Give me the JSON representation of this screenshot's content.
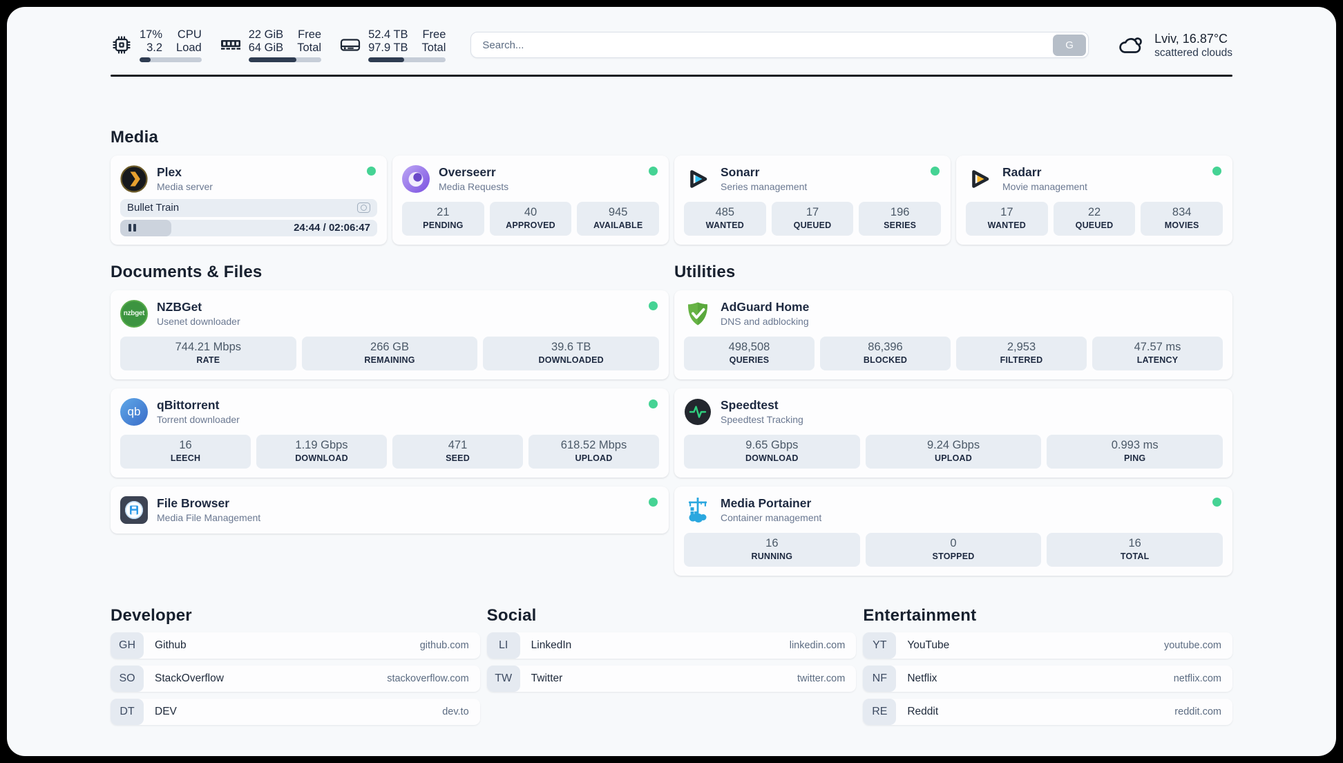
{
  "header": {
    "system": {
      "cpu": {
        "icon": "cpu-icon",
        "values": [
          "17%",
          "3.2"
        ],
        "labels": [
          "CPU",
          "Load"
        ],
        "progress_pct": 18
      },
      "memory": {
        "icon": "memory-icon",
        "values": [
          "22 GiB",
          "64 GiB"
        ],
        "labels": [
          "Free",
          "Total"
        ],
        "progress_pct": 66
      },
      "disk": {
        "icon": "disk-icon",
        "values": [
          "52.4 TB",
          "97.9 TB"
        ],
        "labels": [
          "Free",
          "Total"
        ],
        "progress_pct": 46
      }
    },
    "search": {
      "placeholder": "Search...",
      "engine_button": "G"
    },
    "weather": {
      "icon": "scattered-clouds-icon",
      "summary": "Lviv, 16.87°C",
      "condition": "scattered clouds"
    }
  },
  "sections": {
    "media": "Media",
    "documents": "Documents & Files",
    "utilities": "Utilities",
    "developer": "Developer",
    "social": "Social",
    "entertainment": "Entertainment"
  },
  "services": {
    "plex": {
      "icon": "plex-icon",
      "name": "Plex",
      "desc": "Media server",
      "status": "online",
      "session": {
        "title": "Bullet Train",
        "time": "24:44 / 02:06:47",
        "elapsed_pct": 20,
        "state": "paused"
      }
    },
    "overseerr": {
      "icon": "overseerr-icon",
      "name": "Overseerr",
      "desc": "Media Requests",
      "status": "online",
      "stats": [
        {
          "value": "21",
          "label": "PENDING"
        },
        {
          "value": "40",
          "label": "APPROVED"
        },
        {
          "value": "945",
          "label": "AVAILABLE"
        }
      ]
    },
    "sonarr": {
      "icon": "sonarr-icon",
      "name": "Sonarr",
      "desc": "Series management",
      "status": "online",
      "stats": [
        {
          "value": "485",
          "label": "WANTED"
        },
        {
          "value": "17",
          "label": "QUEUED"
        },
        {
          "value": "196",
          "label": "SERIES"
        }
      ]
    },
    "radarr": {
      "icon": "radarr-icon",
      "name": "Radarr",
      "desc": "Movie management",
      "status": "online",
      "stats": [
        {
          "value": "17",
          "label": "WANTED"
        },
        {
          "value": "22",
          "label": "QUEUED"
        },
        {
          "value": "834",
          "label": "MOVIES"
        }
      ]
    },
    "nzbget": {
      "icon": "nzbget-icon",
      "icon_text": "nzbget",
      "name": "NZBGet",
      "desc": "Usenet downloader",
      "status": "online",
      "stats": [
        {
          "value": "744.21 Mbps",
          "label": "RATE"
        },
        {
          "value": "266 GB",
          "label": "REMAINING"
        },
        {
          "value": "39.6 TB",
          "label": "DOWNLOADED"
        }
      ]
    },
    "qbittorrent": {
      "icon": "qbittorrent-icon",
      "icon_text": "qb",
      "name": "qBittorrent",
      "desc": "Torrent downloader",
      "status": "online",
      "stats": [
        {
          "value": "16",
          "label": "LEECH"
        },
        {
          "value": "1.19 Gbps",
          "label": "DOWNLOAD"
        },
        {
          "value": "471",
          "label": "SEED"
        },
        {
          "value": "618.52 Mbps",
          "label": "UPLOAD"
        }
      ]
    },
    "filebrowser": {
      "icon": "filebrowser-icon",
      "name": "File Browser",
      "desc": "Media File Management",
      "status": "online"
    },
    "adguard": {
      "icon": "adguard-icon",
      "name": "AdGuard Home",
      "desc": "DNS and adblocking",
      "status": "none",
      "stats": [
        {
          "value": "498,508",
          "label": "QUERIES"
        },
        {
          "value": "86,396",
          "label": "BLOCKED"
        },
        {
          "value": "2,953",
          "label": "FILTERED"
        },
        {
          "value": "47.57 ms",
          "label": "LATENCY"
        }
      ]
    },
    "speedtest": {
      "icon": "speedtest-icon",
      "name": "Speedtest",
      "desc": "Speedtest Tracking",
      "status": "none",
      "stats": [
        {
          "value": "9.65 Gbps",
          "label": "DOWNLOAD"
        },
        {
          "value": "9.24 Gbps",
          "label": "UPLOAD"
        },
        {
          "value": "0.993 ms",
          "label": "PING"
        }
      ]
    },
    "portainer": {
      "icon": "portainer-icon",
      "name": "Media Portainer",
      "desc": "Container management",
      "status": "online",
      "stats": [
        {
          "value": "16",
          "label": "RUNNING"
        },
        {
          "value": "0",
          "label": "STOPPED"
        },
        {
          "value": "16",
          "label": "TOTAL"
        }
      ]
    }
  },
  "bookmarks": {
    "developer": [
      {
        "abbr": "GH",
        "name": "Github",
        "url": "github.com"
      },
      {
        "abbr": "SO",
        "name": "StackOverflow",
        "url": "stackoverflow.com"
      },
      {
        "abbr": "DT",
        "name": "DEV",
        "url": "dev.to"
      }
    ],
    "social": [
      {
        "abbr": "LI",
        "name": "LinkedIn",
        "url": "linkedin.com"
      },
      {
        "abbr": "TW",
        "name": "Twitter",
        "url": "twitter.com"
      }
    ],
    "entertainment": [
      {
        "abbr": "YT",
        "name": "YouTube",
        "url": "youtube.com"
      },
      {
        "abbr": "NF",
        "name": "Netflix",
        "url": "netflix.com"
      },
      {
        "abbr": "RE",
        "name": "Reddit",
        "url": "reddit.com"
      }
    ]
  },
  "colors": {
    "status_online": "#45d394",
    "bar_fill": "#2e3c51",
    "plex_amber": "#e8a12f",
    "overseerr_purple": "#7a4fe0",
    "sonarr_blue": "#2fc1f2",
    "radarr_amber": "#f6b62c",
    "nzbget_green": "#3c9440",
    "qbittorrent_blue": "#4a7fd6",
    "filebrowser_blue": "#2f9be8",
    "adguard_green": "#67b345",
    "speedtest_green": "#2fd07e",
    "portainer_blue": "#2aa7df"
  }
}
